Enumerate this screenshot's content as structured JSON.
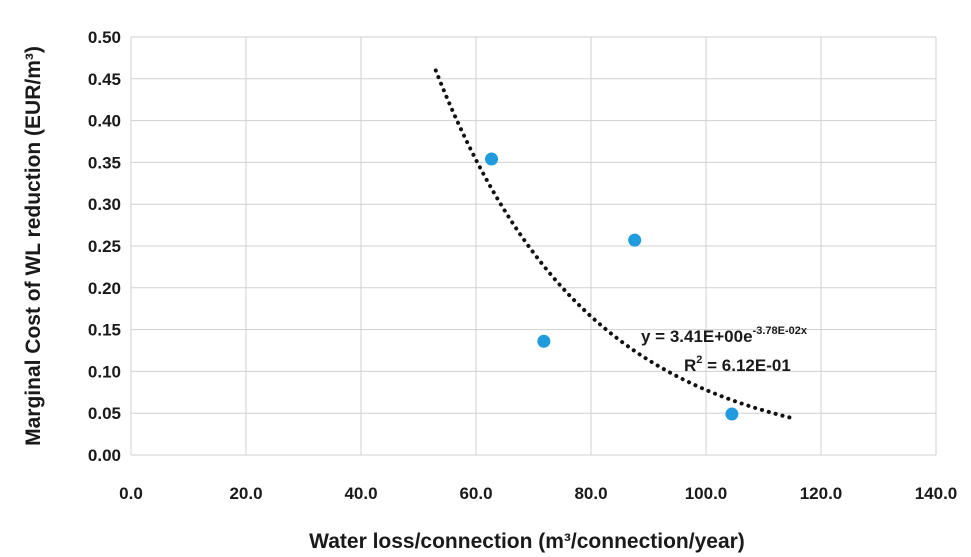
{
  "chart_data": {
    "type": "scatter",
    "title": "",
    "xlabel": "Water loss/connection (m³/connection/year)",
    "ylabel": "Marginal Cost of WL reduction (EUR/m³)",
    "xlim": [
      0,
      140
    ],
    "ylim": [
      0,
      0.5
    ],
    "x_ticks": [
      "0.0",
      "20.0",
      "40.0",
      "60.0",
      "80.0",
      "100.0",
      "120.0",
      "140.0"
    ],
    "y_ticks": [
      "0.00",
      "0.05",
      "0.10",
      "0.15",
      "0.20",
      "0.25",
      "0.30",
      "0.35",
      "0.40",
      "0.45",
      "0.50"
    ],
    "grid": true,
    "legend": "none",
    "series": [
      {
        "marker_color": "#1f9bde",
        "points": [
          {
            "x": 62.7,
            "y": 0.354
          },
          {
            "x": 71.8,
            "y": 0.136
          },
          {
            "x": 87.6,
            "y": 0.257
          },
          {
            "x": 104.5,
            "y": 0.049
          }
        ]
      }
    ],
    "trendline": {
      "type": "exponential",
      "a": 3.41,
      "b": -0.0378,
      "x_range": [
        53,
        115
      ],
      "style": "dotted",
      "color": "#111111",
      "equation_prefix": "y = 3.41E+00e",
      "equation_exponent": "-3.78E-02x",
      "r2_prefix": "R",
      "r2_superscript": "2",
      "r2_suffix": " = 6.12E-01"
    },
    "colors": {
      "grid": "#d0d0d0",
      "axis_text": "#1a1a1a"
    }
  }
}
